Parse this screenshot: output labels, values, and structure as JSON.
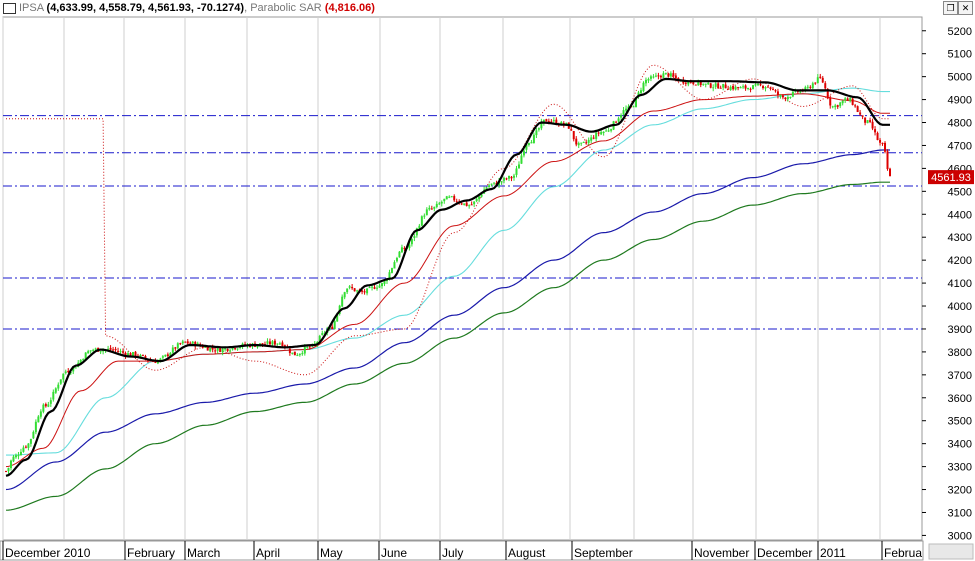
{
  "header": {
    "symbol": "IPSA",
    "ohlc": "(4,633.99, 4,558.79, 4,561.93, -70.1274)",
    "indicator_name": "Parabolic SAR",
    "indicator_value": "(4,816.06)",
    "restore_icon": "restore-window-icon",
    "close_icon": "close-window-icon"
  },
  "chart_data": {
    "type": "candlestick",
    "title": "IPSA",
    "last_price_label": "4561.93",
    "last_price": 4561.93,
    "up_color": "#33dd33",
    "down_color": "#dd0000",
    "ylim": [
      2980,
      5260
    ],
    "y_ticks": [
      3000,
      3100,
      3200,
      3300,
      3400,
      3500,
      3600,
      3700,
      3800,
      3900,
      4000,
      4100,
      4200,
      4300,
      4400,
      4500,
      4600,
      4700,
      4800,
      4900,
      5000,
      5100,
      5200
    ],
    "x_labels": [
      "December 2010",
      "February",
      "March",
      "April",
      "May",
      "June",
      "July",
      "August",
      "September",
      "November",
      "December",
      "2011",
      "Februa"
    ],
    "horizontal_levels": [
      4830,
      4668,
      4523,
      4122,
      3900
    ],
    "price_anchors": [
      [
        0,
        3280
      ],
      [
        3,
        3340
      ],
      [
        8,
        3390
      ],
      [
        15,
        3560
      ],
      [
        25,
        3720
      ],
      [
        35,
        3810
      ],
      [
        42,
        3810
      ],
      [
        50,
        3790
      ],
      [
        60,
        3760
      ],
      [
        72,
        3840
      ],
      [
        85,
        3810
      ],
      [
        98,
        3830
      ],
      [
        110,
        3840
      ],
      [
        116,
        3790
      ],
      [
        122,
        3820
      ],
      [
        130,
        3900
      ],
      [
        137,
        4080
      ],
      [
        143,
        4060
      ],
      [
        150,
        4090
      ],
      [
        160,
        4250
      ],
      [
        170,
        4420
      ],
      [
        178,
        4470
      ],
      [
        186,
        4440
      ],
      [
        195,
        4530
      ],
      [
        203,
        4560
      ],
      [
        210,
        4720
      ],
      [
        217,
        4810
      ],
      [
        225,
        4790
      ],
      [
        230,
        4700
      ],
      [
        240,
        4760
      ],
      [
        250,
        4860
      ],
      [
        258,
        4990
      ],
      [
        265,
        5010
      ],
      [
        272,
        4980
      ],
      [
        285,
        4960
      ],
      [
        295,
        4950
      ],
      [
        305,
        4960
      ],
      [
        312,
        4910
      ],
      [
        320,
        4940
      ],
      [
        327,
        4990
      ],
      [
        332,
        4870
      ],
      [
        338,
        4900
      ],
      [
        346,
        4800
      ],
      [
        352,
        4700
      ],
      [
        355,
        4560
      ]
    ],
    "ma_anchors": {
      "black": [
        [
          0,
          3260
        ],
        [
          8,
          3330
        ],
        [
          18,
          3540
        ],
        [
          28,
          3740
        ],
        [
          38,
          3810
        ],
        [
          50,
          3780
        ],
        [
          62,
          3760
        ],
        [
          74,
          3830
        ],
        [
          88,
          3820
        ],
        [
          100,
          3830
        ],
        [
          112,
          3820
        ],
        [
          124,
          3830
        ],
        [
          136,
          3990
        ],
        [
          145,
          4090
        ],
        [
          155,
          4120
        ],
        [
          165,
          4330
        ],
        [
          175,
          4420
        ],
        [
          185,
          4460
        ],
        [
          195,
          4510
        ],
        [
          205,
          4660
        ],
        [
          215,
          4800
        ],
        [
          225,
          4790
        ],
        [
          235,
          4760
        ],
        [
          245,
          4790
        ],
        [
          255,
          4920
        ],
        [
          265,
          4990
        ],
        [
          275,
          4980
        ],
        [
          290,
          4980
        ],
        [
          305,
          4975
        ],
        [
          318,
          4940
        ],
        [
          330,
          4940
        ],
        [
          342,
          4910
        ],
        [
          352,
          4790
        ]
      ],
      "red": [
        [
          0,
          3300
        ],
        [
          15,
          3380
        ],
        [
          30,
          3630
        ],
        [
          45,
          3760
        ],
        [
          60,
          3760
        ],
        [
          80,
          3790
        ],
        [
          100,
          3800
        ],
        [
          120,
          3810
        ],
        [
          140,
          3920
        ],
        [
          160,
          4100
        ],
        [
          180,
          4350
        ],
        [
          200,
          4480
        ],
        [
          220,
          4630
        ],
        [
          240,
          4720
        ],
        [
          260,
          4850
        ],
        [
          280,
          4900
        ],
        [
          300,
          4915
        ],
        [
          320,
          4925
        ],
        [
          340,
          4895
        ],
        [
          352,
          4840
        ]
      ],
      "cyan": [
        [
          0,
          3350
        ],
        [
          20,
          3360
        ],
        [
          40,
          3600
        ],
        [
          60,
          3760
        ],
        [
          80,
          3790
        ],
        [
          100,
          3800
        ],
        [
          120,
          3810
        ],
        [
          140,
          3860
        ],
        [
          160,
          3960
        ],
        [
          180,
          4130
        ],
        [
          200,
          4330
        ],
        [
          220,
          4520
        ],
        [
          240,
          4680
        ],
        [
          260,
          4790
        ],
        [
          280,
          4860
        ],
        [
          300,
          4900
        ],
        [
          320,
          4925
        ],
        [
          340,
          4950
        ],
        [
          352,
          4935
        ]
      ],
      "blue": [
        [
          0,
          3200
        ],
        [
          20,
          3320
        ],
        [
          40,
          3450
        ],
        [
          60,
          3530
        ],
        [
          80,
          3580
        ],
        [
          100,
          3620
        ],
        [
          120,
          3660
        ],
        [
          140,
          3730
        ],
        [
          160,
          3840
        ],
        [
          180,
          3960
        ],
        [
          200,
          4080
        ],
        [
          220,
          4200
        ],
        [
          240,
          4320
        ],
        [
          260,
          4410
        ],
        [
          280,
          4490
        ],
        [
          300,
          4560
        ],
        [
          320,
          4620
        ],
        [
          340,
          4660
        ],
        [
          352,
          4680
        ]
      ],
      "green": [
        [
          0,
          3110
        ],
        [
          20,
          3170
        ],
        [
          40,
          3290
        ],
        [
          60,
          3400
        ],
        [
          80,
          3480
        ],
        [
          100,
          3540
        ],
        [
          120,
          3580
        ],
        [
          140,
          3660
        ],
        [
          160,
          3750
        ],
        [
          180,
          3860
        ],
        [
          200,
          3970
        ],
        [
          220,
          4080
        ],
        [
          240,
          4200
        ],
        [
          260,
          4290
        ],
        [
          280,
          4370
        ],
        [
          300,
          4440
        ],
        [
          320,
          4490
        ],
        [
          340,
          4530
        ],
        [
          352,
          4540
        ]
      ],
      "sar_dots": [
        [
          40,
          3870
        ],
        [
          60,
          3720
        ],
        [
          80,
          3820
        ],
        [
          100,
          3760
        ],
        [
          120,
          3700
        ],
        [
          140,
          3870
        ],
        [
          160,
          3900
        ],
        [
          180,
          4320
        ],
        [
          200,
          4600
        ],
        [
          220,
          4880
        ],
        [
          240,
          4650
        ],
        [
          260,
          5050
        ],
        [
          280,
          4900
        ],
        [
          300,
          4990
        ],
        [
          320,
          4870
        ],
        [
          340,
          4960
        ],
        [
          352,
          4816
        ]
      ]
    },
    "n_bars": 356,
    "grid": "vertical month lines"
  }
}
